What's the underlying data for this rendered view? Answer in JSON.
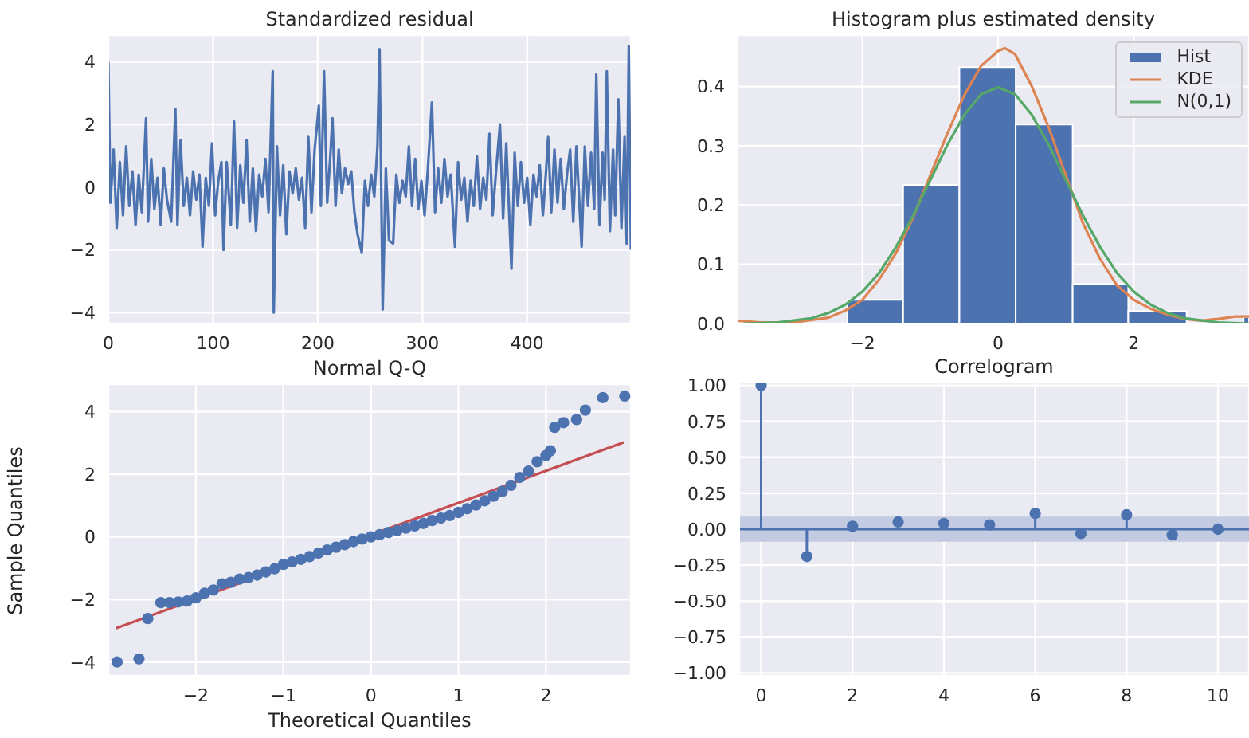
{
  "chart_data": [
    {
      "type": "line",
      "title": "Standardized residual",
      "xlim": [
        0,
        499
      ],
      "xticks": [
        0,
        100,
        200,
        300,
        400
      ],
      "ylim": [
        -4.35,
        4.85
      ],
      "yticks": [
        -4,
        -2,
        0,
        2,
        4
      ],
      "grid": true,
      "series": [
        {
          "color": "#4c72b0",
          "x": [
            0,
            2,
            5,
            8,
            11,
            14,
            17,
            20,
            23,
            26,
            29,
            32,
            36,
            38,
            41,
            44,
            47,
            50,
            53,
            56,
            60,
            64,
            66,
            69,
            72,
            75,
            78,
            81,
            84,
            87,
            90,
            93,
            96,
            99,
            102,
            105,
            108,
            110,
            113,
            117,
            120,
            123,
            126,
            129,
            132,
            135,
            138,
            141,
            144,
            147,
            150,
            153,
            157,
            158,
            161,
            164,
            167,
            170,
            173,
            176,
            179,
            182,
            185,
            188,
            191,
            194,
            197,
            201,
            203,
            206,
            209,
            212,
            214,
            217,
            220,
            223,
            226,
            229,
            232,
            235,
            238,
            242,
            245,
            248,
            251,
            254,
            257,
            259,
            262,
            265,
            268,
            272,
            275,
            278,
            281,
            284,
            287,
            290,
            293,
            296,
            299,
            302,
            305,
            309,
            312,
            315,
            318,
            321,
            324,
            327,
            331,
            334,
            337,
            340,
            343,
            346,
            349,
            352,
            355,
            358,
            361,
            364,
            367,
            370,
            374,
            377,
            380,
            385,
            388,
            391,
            394,
            397,
            400,
            403,
            406,
            409,
            412,
            415,
            418,
            420,
            423,
            426,
            429,
            432,
            435,
            438,
            441,
            444,
            447,
            452,
            455,
            458,
            461,
            464,
            466,
            469,
            472,
            474,
            476,
            479,
            482,
            484,
            487,
            490,
            493,
            495,
            497,
            499
          ],
          "values": [
            4.0,
            -0.5,
            1.2,
            -1.3,
            0.8,
            -0.9,
            1.3,
            -0.6,
            0.5,
            -1.2,
            0.4,
            -0.8,
            2.2,
            -1.1,
            0.9,
            -0.7,
            0.3,
            -1.2,
            0.6,
            -0.4,
            -1.1,
            2.5,
            -1.2,
            1.5,
            -0.6,
            0.3,
            -0.9,
            0.5,
            -0.4,
            0.4,
            -1.9,
            0.3,
            -0.6,
            1.4,
            -0.9,
            0.2,
            0.8,
            -2.0,
            0.8,
            -1.2,
            2.1,
            -1.3,
            0.7,
            -0.5,
            1.5,
            -1.1,
            0.6,
            -1.4,
            0.4,
            -0.3,
            0.9,
            -0.8,
            3.7,
            -4.0,
            1.3,
            -0.9,
            0.7,
            -1.5,
            0.5,
            -0.2,
            0.6,
            -0.4,
            0.3,
            -1.3,
            1.6,
            -0.8,
            1.2,
            2.6,
            -0.6,
            3.7,
            -0.5,
            1.0,
            2.2,
            -0.6,
            1.2,
            -0.2,
            0.6,
            0.1,
            0.5,
            -0.8,
            -1.5,
            -2.1,
            0.2,
            -0.6,
            0.4,
            -0.3,
            1.3,
            4.4,
            -3.9,
            0.6,
            -1.7,
            -1.8,
            0.4,
            -0.5,
            0.2,
            -0.3,
            1.3,
            -0.6,
            0.9,
            -0.7,
            0.2,
            -0.9,
            0.5,
            2.7,
            -0.8,
            0.6,
            -0.5,
            0.9,
            -0.3,
            0.4,
            -1.9,
            0.8,
            -0.4,
            0.3,
            -1.1,
            0.2,
            -0.6,
            1.0,
            -0.7,
            0.3,
            -0.4,
            1.7,
            -0.9,
            0.4,
            2.0,
            -1.0,
            1.4,
            -2.6,
            1.1,
            -0.6,
            0.8,
            -0.5,
            0.3,
            -1.2,
            0.4,
            -0.3,
            0.7,
            -0.9,
            0.5,
            1.6,
            -0.8,
            1.2,
            -0.5,
            0.9,
            -0.7,
            0.4,
            1.2,
            -1.1,
            1.3,
            -1.9,
            1.3,
            -0.6,
            1.1,
            -0.7,
            3.6,
            -1.2,
            1.1,
            -0.4,
            3.7,
            -1.4,
            1.2,
            -0.9,
            2.8,
            -1.3,
            1.6,
            -1.8,
            4.5,
            -2.0
          ]
        }
      ]
    },
    {
      "type": "histogram",
      "title": "Histogram plus estimated density",
      "xlim": [
        -3.84,
        3.7
      ],
      "xticks": [
        -2,
        0,
        2
      ],
      "ylim": [
        0,
        0.487
      ],
      "yticks": [
        {
          "value": 0,
          "label": "0.0"
        },
        0.1,
        0.2,
        0.3,
        0.4
      ],
      "grid": true,
      "legend": "top right",
      "series": [
        {
          "name": "Hist",
          "color": "#4c72b0",
          "bins": [
            -2.22,
            -1.4,
            -0.57,
            0.26,
            1.1,
            1.92,
            2.78,
            3.62,
            3.7
          ],
          "values": [
            0.04,
            0.234,
            0.433,
            0.336,
            0.067,
            0.021,
            0,
            0.011
          ]
        },
        {
          "name": "KDE",
          "type": "line",
          "color": "#dd8452",
          "x": [
            -3.84,
            -3.5,
            -3.0,
            -2.5,
            -2.25,
            -2,
            -1.75,
            -1.5,
            -1.25,
            -1,
            -0.75,
            -0.5,
            -0.25,
            0,
            0.1,
            0.25,
            0.5,
            0.75,
            1,
            1.25,
            1.5,
            1.75,
            2,
            2.25,
            2.5,
            2.75,
            3,
            3.25,
            3.5,
            3.7
          ],
          "values": [
            0.005,
            0.002,
            0.002,
            0.01,
            0.022,
            0.04,
            0.075,
            0.12,
            0.18,
            0.25,
            0.32,
            0.385,
            0.435,
            0.46,
            0.465,
            0.455,
            0.4,
            0.33,
            0.25,
            0.17,
            0.11,
            0.065,
            0.04,
            0.025,
            0.015,
            0.008,
            0.005,
            0.008,
            0.012,
            0.012
          ]
        },
        {
          "name": "N(0,1)",
          "type": "line",
          "color": "#55a868",
          "x": [
            -3.75,
            -3.25,
            -2.75,
            -2.5,
            -2.25,
            -2,
            -1.75,
            -1.5,
            -1.25,
            -1,
            -0.75,
            -0.5,
            -0.25,
            0,
            0.25,
            0.5,
            0.75,
            1,
            1.25,
            1.5,
            1.75,
            2,
            2.25,
            2.5,
            2.75,
            3.25,
            3.7
          ],
          "values": [
            0.0,
            0.002,
            0.009,
            0.018,
            0.032,
            0.054,
            0.086,
            0.13,
            0.183,
            0.242,
            0.301,
            0.352,
            0.387,
            0.399,
            0.387,
            0.352,
            0.301,
            0.242,
            0.183,
            0.13,
            0.086,
            0.054,
            0.032,
            0.018,
            0.009,
            0.002,
            0.0
          ]
        }
      ]
    },
    {
      "type": "scatter",
      "title": "Normal Q-Q",
      "xlabel": "Theoretical Quantiles",
      "ylabel": "Sample Quantiles",
      "xlim": [
        -3.0,
        2.97
      ],
      "xticks": [
        -2,
        -1,
        0,
        1,
        2
      ],
      "ylim": [
        -4.44,
        4.88
      ],
      "yticks": [
        -4,
        -2,
        0,
        2,
        4
      ],
      "grid": true,
      "series": [
        {
          "marker": "circle",
          "color": "#4c72b0",
          "x": [
            -2.9,
            -2.65,
            -2.55,
            -2.4,
            -2.3,
            -2.2,
            -2.1,
            -2.0,
            -1.9,
            -1.8,
            -1.7,
            -1.6,
            -1.5,
            -1.4,
            -1.3,
            -1.2,
            -1.1,
            -1.0,
            -0.9,
            -0.8,
            -0.7,
            -0.6,
            -0.5,
            -0.4,
            -0.3,
            -0.2,
            -0.1,
            0,
            0.1,
            0.2,
            0.3,
            0.4,
            0.5,
            0.6,
            0.7,
            0.8,
            0.9,
            1.0,
            1.1,
            1.2,
            1.3,
            1.4,
            1.5,
            1.6,
            1.7,
            1.8,
            1.9,
            2.0,
            2.05,
            2.1,
            2.2,
            2.35,
            2.45,
            2.65,
            2.9
          ],
          "values": [
            -4.0,
            -3.9,
            -2.61,
            -2.1,
            -2.1,
            -2.08,
            -2.05,
            -1.95,
            -1.8,
            -1.7,
            -1.5,
            -1.45,
            -1.35,
            -1.3,
            -1.22,
            -1.12,
            -1.02,
            -0.88,
            -0.8,
            -0.72,
            -0.63,
            -0.52,
            -0.42,
            -0.33,
            -0.25,
            -0.15,
            -0.07,
            0,
            0.07,
            0.14,
            0.2,
            0.28,
            0.35,
            0.43,
            0.52,
            0.6,
            0.68,
            0.78,
            0.9,
            1.02,
            1.15,
            1.3,
            1.45,
            1.65,
            1.9,
            2.1,
            2.4,
            2.6,
            2.75,
            3.5,
            3.65,
            3.75,
            4.05,
            4.45,
            4.5
          ]
        },
        {
          "type": "line",
          "color": "#c44e52",
          "x": [
            -2.91,
            2.89
          ],
          "values": [
            -2.92,
            3.02
          ]
        }
      ]
    },
    {
      "type": "lollipop",
      "title": "Correlogram",
      "xlim": [
        -0.48,
        10.68
      ],
      "xticks": [
        0,
        2,
        4,
        6,
        8,
        10
      ],
      "ylim": [
        -1.02,
        1.02
      ],
      "yticks": [
        {
          "value": -1,
          "label": "−1.00"
        },
        -0.75,
        {
          "value": -0.5,
          "label": "−0.50"
        },
        -0.25,
        {
          "value": 0,
          "label": "0.00"
        },
        0.25,
        {
          "value": 0.5,
          "label": "0.50"
        },
        0.75,
        {
          "value": 1,
          "label": "1.00"
        }
      ],
      "grid": true,
      "marker": "circle",
      "ref_lines": [
        {
          "axis": "y",
          "value": 0,
          "color": "#4c72b0"
        }
      ],
      "bands": [
        {
          "axis": "y",
          "from": -0.088,
          "to": 0.088,
          "color": "#c3cbe2"
        }
      ],
      "series": [
        {
          "color": "#4c72b0",
          "x": [
            0,
            1,
            2,
            3,
            4,
            5,
            6,
            7,
            8,
            9,
            10
          ],
          "values": [
            1.0,
            -0.19,
            0.02,
            0.05,
            0.04,
            0.03,
            0.11,
            -0.03,
            0.1,
            -0.04,
            0.0
          ]
        }
      ]
    }
  ]
}
